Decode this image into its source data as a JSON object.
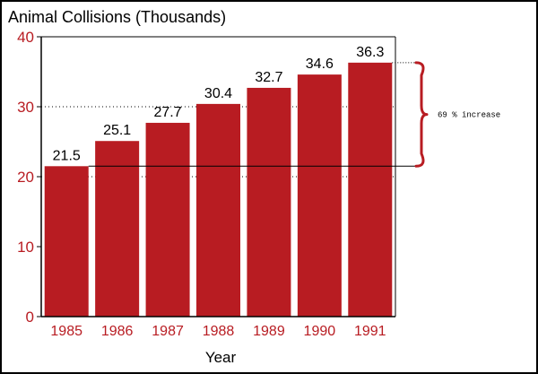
{
  "chart_data": {
    "type": "bar",
    "title": "Animal Collisions (Thousands)",
    "xlabel": "Year",
    "ylabel": "",
    "categories": [
      "1985",
      "1986",
      "1987",
      "1988",
      "1989",
      "1990",
      "1991"
    ],
    "values": [
      21.5,
      25.1,
      27.7,
      30.4,
      32.7,
      34.6,
      36.3
    ],
    "data_labels": [
      "21.5",
      "25.1",
      "27.7",
      "30.4",
      "32.7",
      "34.6",
      "36.3"
    ],
    "ylim": [
      0,
      40
    ],
    "yticks": [
      "0",
      "10",
      "20",
      "30",
      "40"
    ],
    "grid": "dotted horizontal at 20 and 30",
    "annotation": {
      "text": "69 % increase",
      "from_value": 21.5,
      "to_value": 36.3
    },
    "colors": {
      "bar": "#b81c22",
      "tick_text": "#b81c22",
      "text": "#000000",
      "frame": "#000000"
    }
  }
}
